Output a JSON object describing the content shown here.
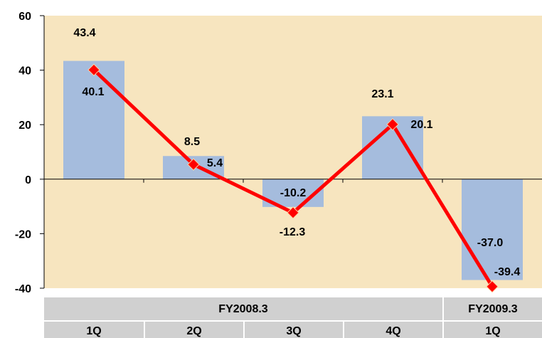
{
  "chart_data": {
    "type": "bar",
    "categories": [
      "1Q",
      "2Q",
      "3Q",
      "4Q",
      "1Q"
    ],
    "groups": [
      {
        "label": "FY2008.3",
        "span": 4
      },
      {
        "label": "FY2009.3",
        "span": 1
      }
    ],
    "series": [
      {
        "type": "bar",
        "values": [
          43.4,
          8.5,
          -10.2,
          23.1,
          -37.0
        ]
      },
      {
        "type": "line",
        "values": [
          40.1,
          5.4,
          -12.3,
          20.1,
          -39.4
        ]
      }
    ],
    "ylim": [
      -40,
      60
    ],
    "yticks": [
      "60",
      "40",
      "20",
      "0",
      "-20",
      "-40"
    ],
    "grid": false,
    "colors": {
      "plot_background": "#F7E5BF",
      "bar": "#A5BCDD",
      "line": "#FF0000",
      "marker": "#FF0000",
      "table_band": "#D0D0D0"
    }
  }
}
